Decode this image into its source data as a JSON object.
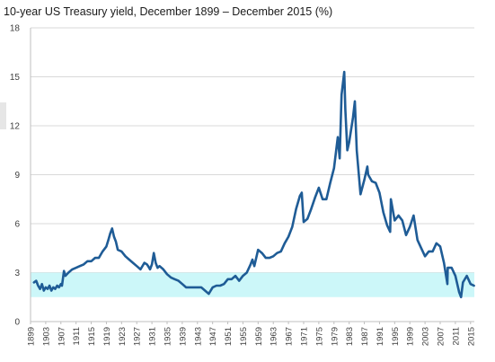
{
  "chart_data": {
    "type": "line",
    "title": "10-year US Treasury yield, December 1899 – December 2015 (%)",
    "xlabel": "",
    "ylabel": "",
    "ylim": [
      0,
      18
    ],
    "xlim": [
      1899,
      2016
    ],
    "y_ticks": [
      "0",
      "3",
      "6",
      "9",
      "12",
      "15",
      "18"
    ],
    "x_ticks": [
      "1899",
      "1903",
      "1907",
      "1911",
      "1915",
      "1919",
      "1923",
      "1927",
      "1931",
      "1935",
      "1939",
      "1943",
      "1947",
      "1951",
      "1955",
      "1959",
      "1963",
      "1967",
      "1971",
      "1975",
      "1979",
      "1983",
      "1987",
      "1991",
      "1995",
      "1999",
      "2003",
      "2007",
      "2011",
      "2015"
    ],
    "shaded_band": {
      "y_from": 1.5,
      "y_to": 3.0,
      "color": "#ccf7f9"
    },
    "grid": true,
    "line_color": "#1f5c96",
    "series": [
      {
        "x": [
          1899.9,
          1900.5,
          1901,
          1901.5,
          1902,
          1902.5,
          1903,
          1903.5,
          1904,
          1904.5,
          1905,
          1905.5,
          1906,
          1906.5,
          1907,
          1907.3,
          1907.8,
          1908.2,
          1909,
          1910,
          1911,
          1912,
          1913,
          1914,
          1915,
          1916,
          1917,
          1918,
          1919,
          1919.5,
          1920,
          1920.5,
          1921,
          1921.5,
          1922,
          1923,
          1924,
          1925,
          1926,
          1927,
          1928,
          1929,
          1929.7,
          1930,
          1930.5,
          1931,
          1931.5,
          1932,
          1932.5,
          1933,
          1934,
          1935,
          1936,
          1937,
          1938,
          1939,
          1940,
          1941,
          1942,
          1943,
          1944,
          1945,
          1946,
          1947,
          1948,
          1949,
          1950,
          1951,
          1952,
          1953,
          1954,
          1955,
          1956,
          1957,
          1957.5,
          1958,
          1959,
          1960,
          1961,
          1962,
          1963,
          1964,
          1965,
          1966,
          1967,
          1968,
          1969,
          1970,
          1970.5,
          1971,
          1972,
          1973,
          1974,
          1975,
          1976,
          1977,
          1978,
          1979,
          1980,
          1980.5,
          1981,
          1981.7,
          1982,
          1982.5,
          1983,
          1984,
          1984.5,
          1985,
          1986,
          1987,
          1987.8,
          1988,
          1989,
          1990,
          1991,
          1992,
          1993,
          1993.8,
          1994,
          1995,
          1996,
          1997,
          1998,
          1999,
          2000,
          2001,
          2002,
          2003,
          2004,
          2005,
          2006,
          2007,
          2008,
          2008.9,
          2009,
          2010,
          2011,
          2012,
          2012.5,
          2013,
          2014,
          2015,
          2015.9
        ],
        "y": [
          2.4,
          2.5,
          2.2,
          2.0,
          2.3,
          1.9,
          2.1,
          2.0,
          2.2,
          1.9,
          2.1,
          2.0,
          2.2,
          2.1,
          2.3,
          2.2,
          3.1,
          2.8,
          3.0,
          3.2,
          3.3,
          3.4,
          3.5,
          3.7,
          3.7,
          3.9,
          3.9,
          4.3,
          4.6,
          5.0,
          5.4,
          5.7,
          5.2,
          4.9,
          4.4,
          4.3,
          4.0,
          3.8,
          3.6,
          3.4,
          3.2,
          3.6,
          3.5,
          3.4,
          3.2,
          3.5,
          4.2,
          3.6,
          3.3,
          3.4,
          3.2,
          2.9,
          2.7,
          2.6,
          2.5,
          2.3,
          2.1,
          2.1,
          2.1,
          2.1,
          2.1,
          1.9,
          1.7,
          2.1,
          2.2,
          2.2,
          2.3,
          2.6,
          2.6,
          2.8,
          2.5,
          2.8,
          3.0,
          3.5,
          3.8,
          3.4,
          4.4,
          4.2,
          3.9,
          3.9,
          4.0,
          4.2,
          4.3,
          4.8,
          5.2,
          5.8,
          6.9,
          7.7,
          7.9,
          6.1,
          6.3,
          6.9,
          7.6,
          8.2,
          7.5,
          7.5,
          8.5,
          9.4,
          11.3,
          10.0,
          13.9,
          15.3,
          13.0,
          10.5,
          11.0,
          12.5,
          13.5,
          10.5,
          7.8,
          8.7,
          9.5,
          9.0,
          8.6,
          8.5,
          7.9,
          6.7,
          5.9,
          5.5,
          7.5,
          6.2,
          6.5,
          6.2,
          5.3,
          5.8,
          6.5,
          5.0,
          4.5,
          4.0,
          4.3,
          4.3,
          4.8,
          4.6,
          3.6,
          2.3,
          3.3,
          3.3,
          2.8,
          1.8,
          1.5,
          2.4,
          2.8,
          2.3,
          2.2
        ]
      }
    ]
  }
}
